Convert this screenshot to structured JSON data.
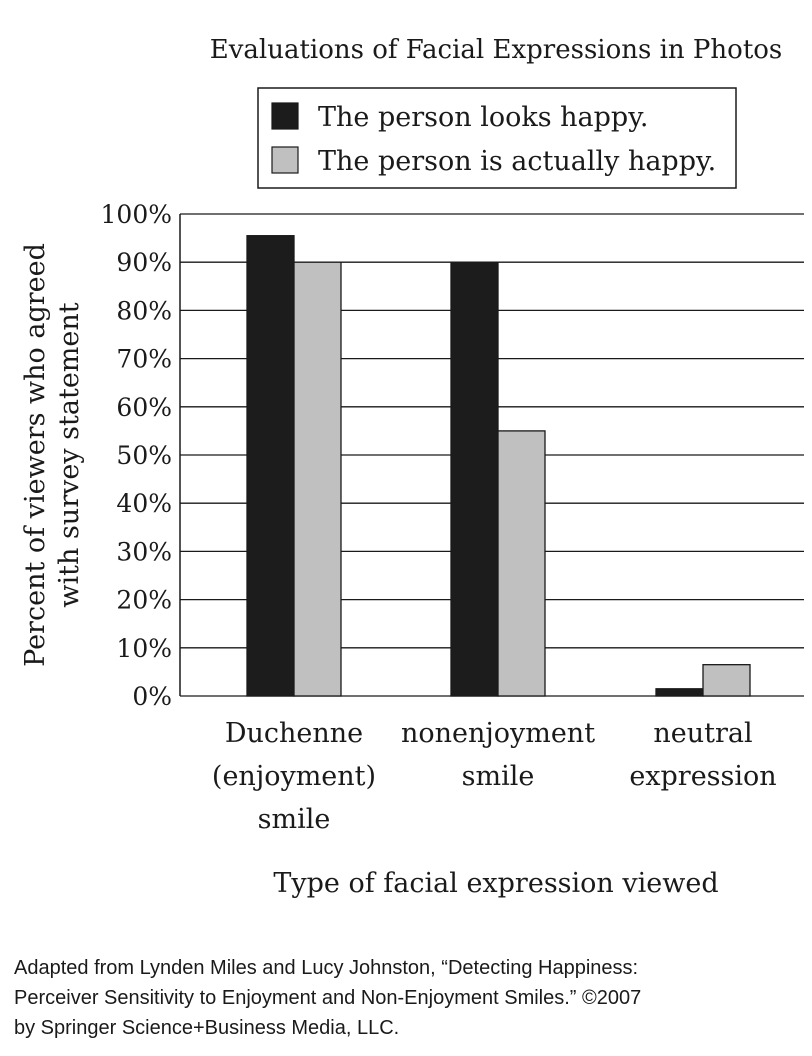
{
  "chart_data": {
    "type": "bar",
    "title": "Evaluations of Facial Expressions in Photos",
    "xlabel": "Type of facial expression viewed",
    "ylabel_lines": [
      "Percent of viewers who agreed",
      "with survey statement"
    ],
    "categories": [
      [
        "Duchenne",
        "(enjoyment)",
        "smile"
      ],
      [
        "nonenjoyment",
        "smile"
      ],
      [
        "neutral",
        "expression"
      ]
    ],
    "series": [
      {
        "name": "The person looks happy.",
        "color": "#1c1c1c",
        "values": [
          95.5,
          90,
          1.5
        ]
      },
      {
        "name": "The person is actually happy.",
        "color": "#c0c0c0",
        "values": [
          90,
          55,
          6.5
        ]
      }
    ],
    "ylim": [
      0,
      100
    ],
    "yticks": [
      0,
      10,
      20,
      30,
      40,
      50,
      60,
      70,
      80,
      90,
      100
    ],
    "ytick_labels": [
      "0%",
      "10%",
      "20%",
      "30%",
      "40%",
      "50%",
      "60%",
      "70%",
      "80%",
      "90%",
      "100%"
    ],
    "grid": true,
    "legend_position": "top-right"
  },
  "source_lines": [
    "Adapted from Lynden Miles and Lucy Johnston, “Detecting Happiness:",
    "Perceiver Sensitivity to Enjoyment and Non-Enjoyment Smiles.” ©2007",
    "by Springer Science+Business Media, LLC."
  ]
}
